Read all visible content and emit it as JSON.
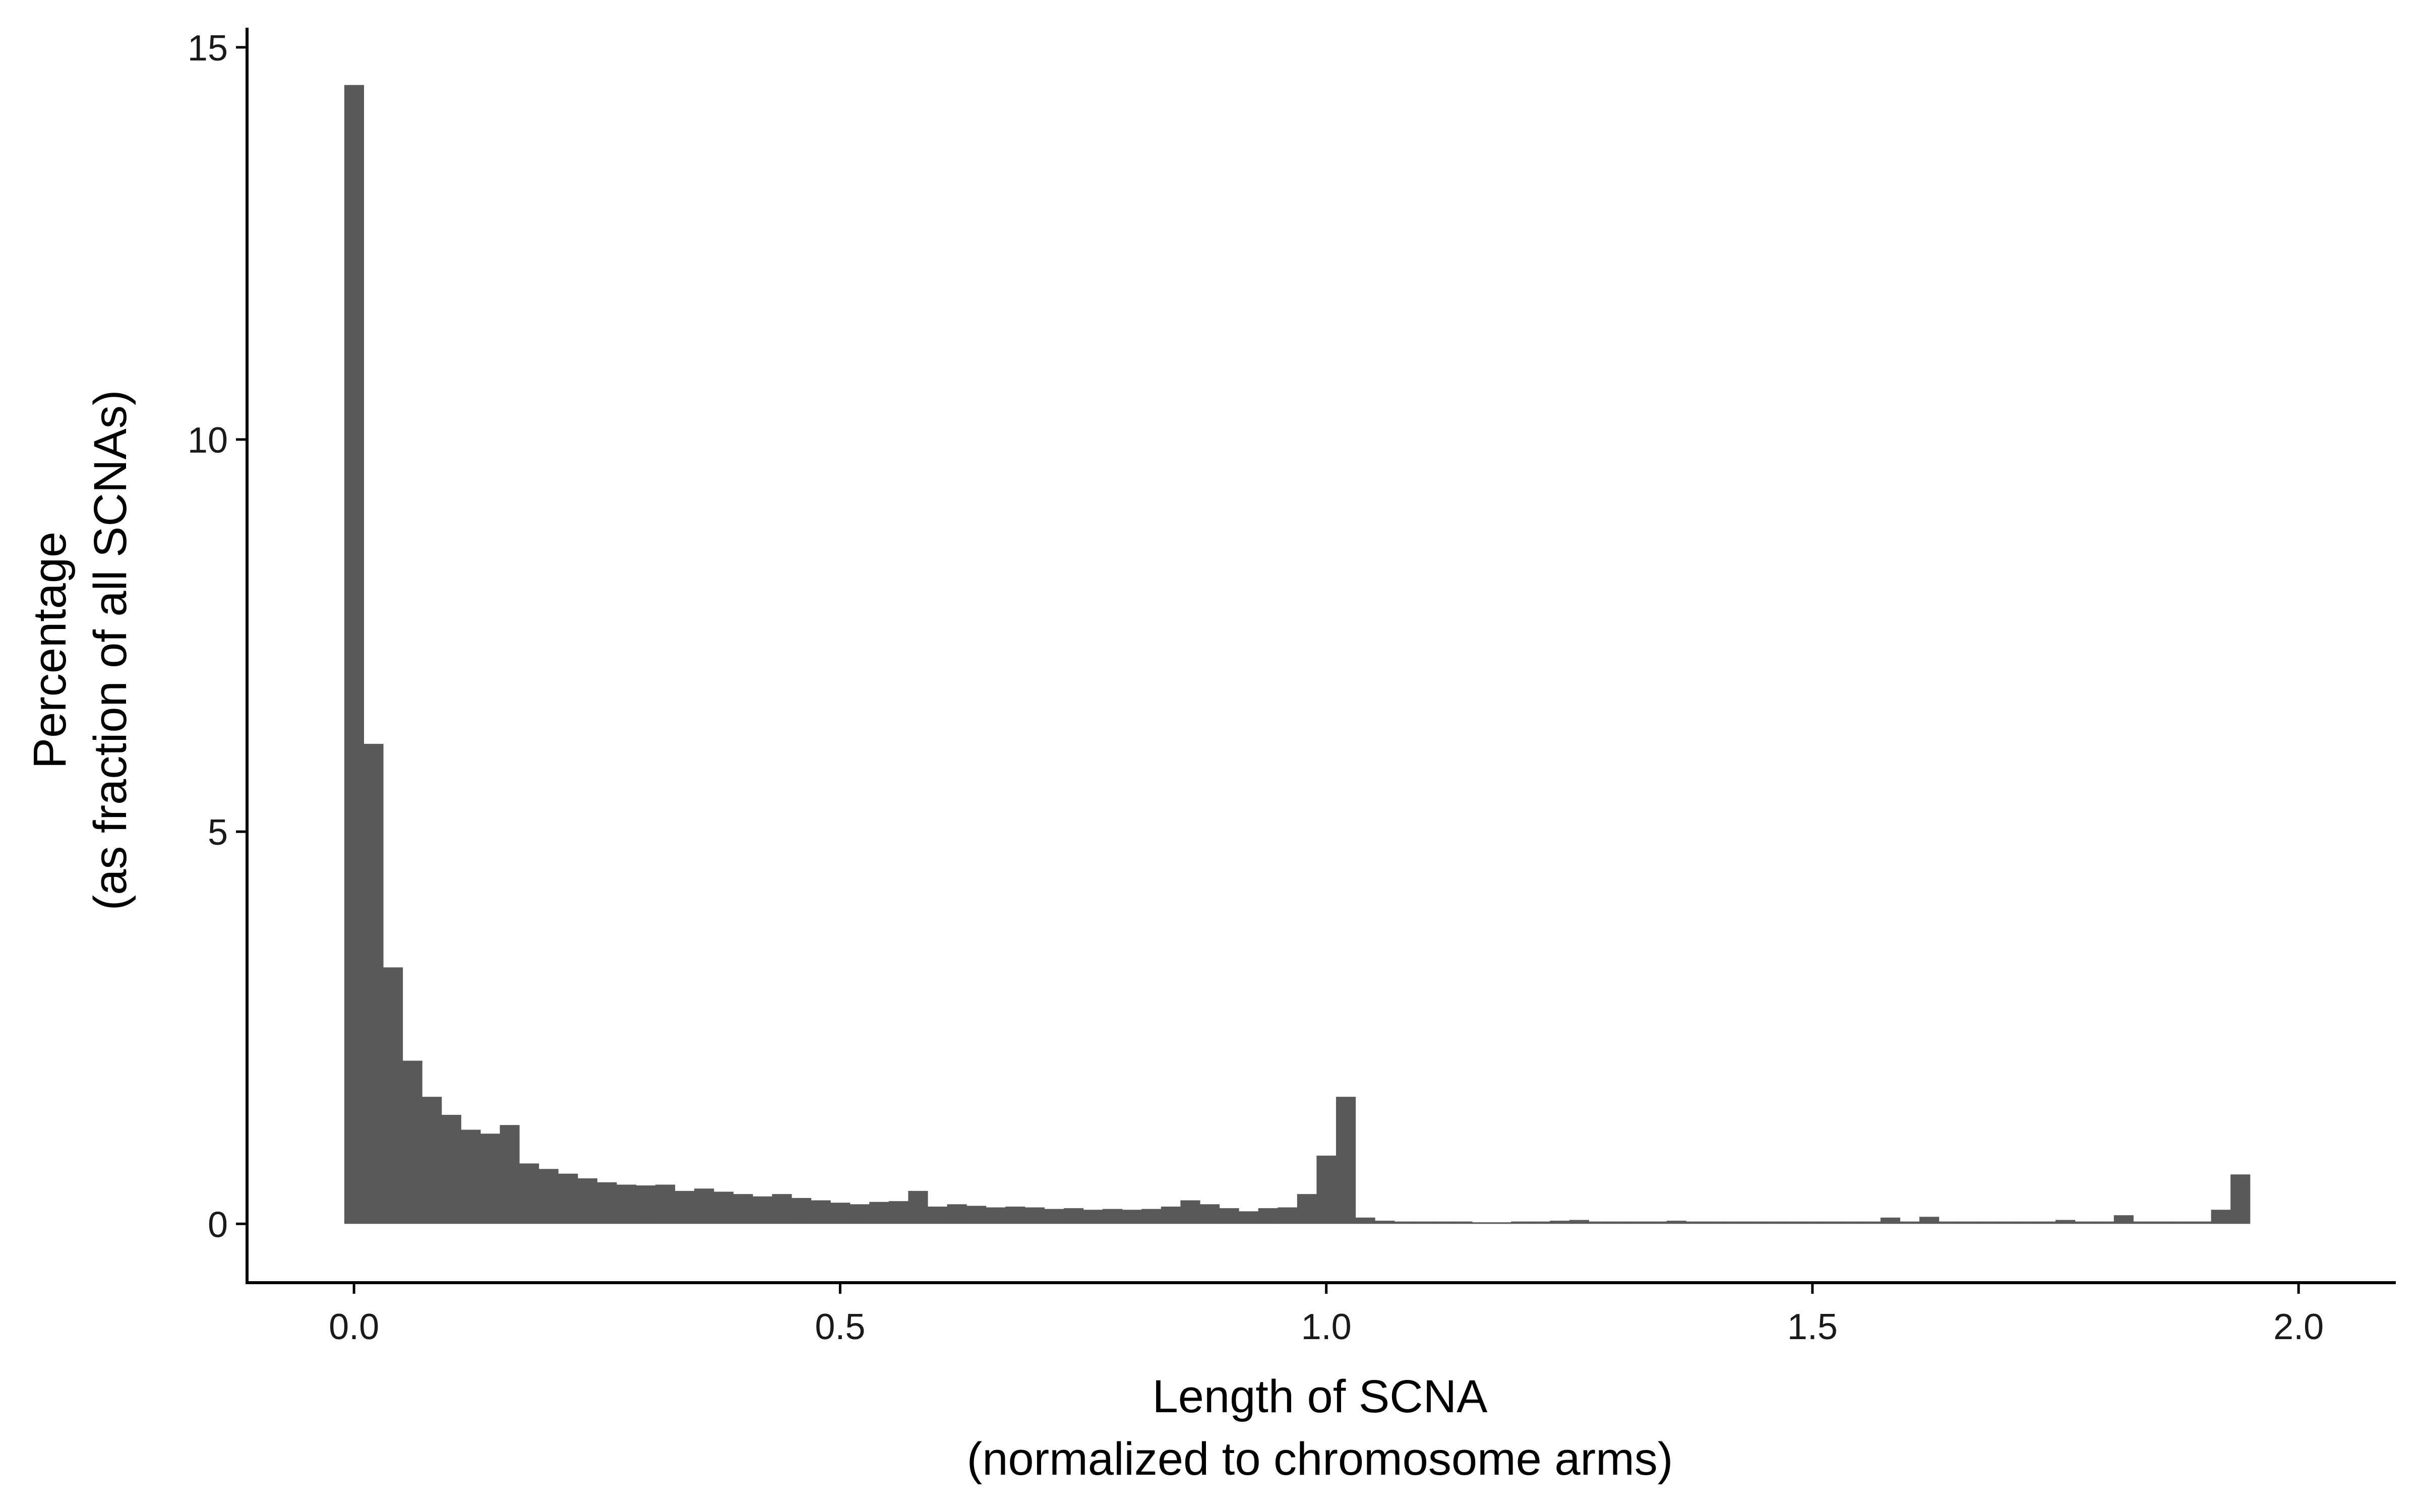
{
  "chart_data": {
    "type": "bar",
    "subtype": "histogram",
    "title": "",
    "xlabel": [
      "Length of SCNA",
      "(normalized to chromosome arms)"
    ],
    "ylabel": [
      "Percentage",
      "(as fraction of all SCNAs)"
    ],
    "xlim": [
      -0.11,
      2.1
    ],
    "ylim": [
      -0.75,
      15.25
    ],
    "x_ticks": [
      {
        "value": 0.0,
        "label": "0.0"
      },
      {
        "value": 0.5,
        "label": "0.5"
      },
      {
        "value": 1.0,
        "label": "1.0"
      },
      {
        "value": 1.5,
        "label": "1.5"
      },
      {
        "value": 2.0,
        "label": "2.0"
      }
    ],
    "y_ticks": [
      {
        "value": 0,
        "label": "0"
      },
      {
        "value": 5,
        "label": "5"
      },
      {
        "value": 10,
        "label": "10"
      },
      {
        "value": 15,
        "label": "15"
      }
    ],
    "bin_start": -0.01,
    "bin_width": 0.02,
    "values": [
      14.52,
      6.12,
      3.27,
      2.08,
      1.62,
      1.39,
      1.2,
      1.15,
      1.26,
      0.77,
      0.7,
      0.64,
      0.58,
      0.53,
      0.5,
      0.49,
      0.5,
      0.42,
      0.45,
      0.41,
      0.38,
      0.35,
      0.38,
      0.33,
      0.3,
      0.27,
      0.25,
      0.28,
      0.29,
      0.42,
      0.22,
      0.25,
      0.23,
      0.21,
      0.22,
      0.21,
      0.19,
      0.2,
      0.18,
      0.19,
      0.18,
      0.19,
      0.22,
      0.3,
      0.25,
      0.2,
      0.16,
      0.2,
      0.21,
      0.38,
      0.87,
      1.62,
      0.08,
      0.04,
      0.03,
      0.03,
      0.03,
      0.03,
      0.02,
      0.02,
      0.03,
      0.03,
      0.04,
      0.05,
      0.03,
      0.03,
      0.03,
      0.03,
      0.04,
      0.03,
      0.03,
      0.03,
      0.03,
      0.03,
      0.03,
      0.03,
      0.03,
      0.03,
      0.03,
      0.08,
      0.03,
      0.09,
      0.03,
      0.03,
      0.03,
      0.03,
      0.03,
      0.03,
      0.05,
      0.03,
      0.03,
      0.11,
      0.03,
      0.03,
      0.03,
      0.03,
      0.18,
      0.63
    ],
    "bar_color": "#595959",
    "grid": false,
    "legend": "none"
  }
}
